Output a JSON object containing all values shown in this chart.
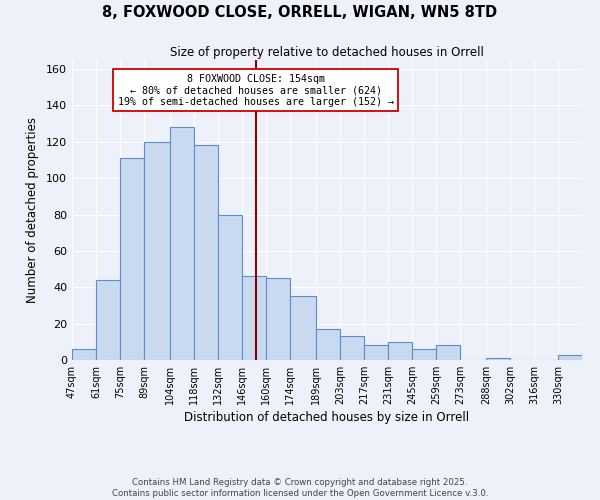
{
  "title": "8, FOXWOOD CLOSE, ORRELL, WIGAN, WN5 8TD",
  "subtitle": "Size of property relative to detached houses in Orrell",
  "xlabel": "Distribution of detached houses by size in Orrell",
  "ylabel": "Number of detached properties",
  "bar_color": "#c8d9f0",
  "bar_edge_color": "#5b8fcc",
  "background_color": "#eef1fa",
  "grid_color": "#ffffff",
  "categories": [
    "47sqm",
    "61sqm",
    "75sqm",
    "89sqm",
    "104sqm",
    "118sqm",
    "132sqm",
    "146sqm",
    "160sqm",
    "174sqm",
    "189sqm",
    "203sqm",
    "217sqm",
    "231sqm",
    "245sqm",
    "259sqm",
    "273sqm",
    "288sqm",
    "302sqm",
    "316sqm",
    "330sqm"
  ],
  "values": [
    6,
    44,
    111,
    120,
    128,
    118,
    80,
    46,
    45,
    35,
    17,
    13,
    8,
    10,
    6,
    8,
    0,
    1,
    0,
    0,
    3
  ],
  "ylim": [
    0,
    165
  ],
  "property_line_color": "#8b0000",
  "annotation_line1": "8 FOXWOOD CLOSE: 154sqm",
  "annotation_line2": "← 80% of detached houses are smaller (624)",
  "annotation_line3": "19% of semi-detached houses are larger (152) →",
  "annotation_box_color": "#ffffff",
  "annotation_box_edge_color": "#cc0000",
  "footer1": "Contains HM Land Registry data © Crown copyright and database right 2025.",
  "footer2": "Contains public sector information licensed under the Open Government Licence v.3.0.",
  "bin_edges": [
    47,
    61,
    75,
    89,
    104,
    118,
    132,
    146,
    160,
    174,
    189,
    203,
    217,
    231,
    245,
    259,
    273,
    288,
    302,
    316,
    330,
    344
  ],
  "property_value": 154
}
